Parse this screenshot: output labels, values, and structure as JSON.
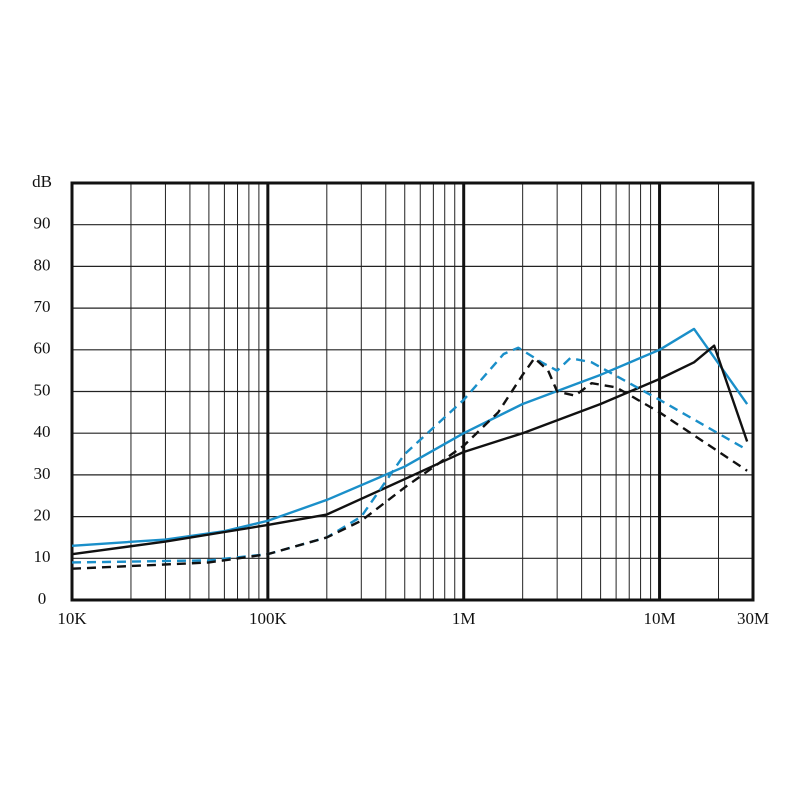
{
  "chart_data": {
    "type": "line",
    "y_label": "dB",
    "xlim": [
      10000,
      30000000
    ],
    "ylim": [
      0,
      100
    ],
    "log_x": true,
    "grid": true,
    "xticks": [
      {
        "value": 10000,
        "label": "10K"
      },
      {
        "value": 100000,
        "label": "100K"
      },
      {
        "value": 1000000,
        "label": "1M"
      },
      {
        "value": 10000000,
        "label": "10M"
      },
      {
        "value": 30000000,
        "label": "30M"
      }
    ],
    "yticks": [
      0,
      10,
      20,
      30,
      40,
      50,
      60,
      70,
      80,
      90
    ],
    "series": [
      {
        "color": "#1a8fc9",
        "style": "solid",
        "x": [
          10000,
          30000,
          60000,
          100000,
          200000,
          500000,
          1000000,
          2000000,
          5000000,
          10000000,
          15000000,
          28000000
        ],
        "values": [
          13,
          14.5,
          16.5,
          19,
          24,
          32,
          40,
          47,
          54,
          60,
          65,
          47
        ]
      },
      {
        "color": "#111111",
        "style": "solid",
        "x": [
          10000,
          30000,
          100000,
          200000,
          500000,
          1000000,
          2000000,
          5000000,
          10000000,
          15000000,
          19000000,
          28000000
        ],
        "values": [
          11,
          14,
          18,
          20.5,
          29,
          35.5,
          40,
          47,
          53,
          57,
          61,
          38
        ]
      },
      {
        "color": "#1a8fc9",
        "style": "dashed",
        "x": [
          10000,
          50000,
          100000,
          200000,
          300000,
          500000,
          1000000,
          1600000,
          1900000,
          2500000,
          3000000,
          3500000,
          4500000,
          10000000,
          28000000
        ],
        "values": [
          9,
          9.5,
          11,
          15,
          20,
          35,
          48,
          59,
          60.5,
          57,
          55,
          58,
          57,
          48,
          36
        ]
      },
      {
        "color": "#111111",
        "style": "dashed",
        "x": [
          10000,
          50000,
          100000,
          200000,
          300000,
          500000,
          1000000,
          1500000,
          2000000,
          2300000,
          2700000,
          3000000,
          3700000,
          4500000,
          6000000,
          10000000,
          28000000
        ],
        "values": [
          7.5,
          9,
          11,
          15,
          19,
          27,
          37,
          45,
          54,
          58,
          55,
          50,
          49,
          52,
          51,
          45,
          31
        ]
      }
    ]
  }
}
